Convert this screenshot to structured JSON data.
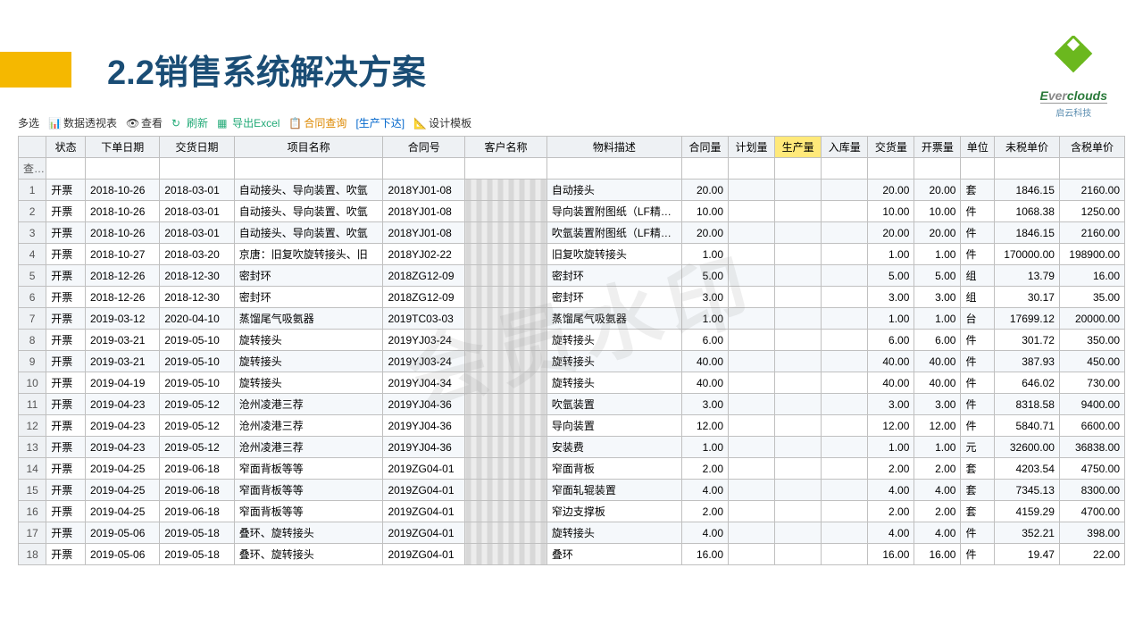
{
  "page": {
    "title": "2.2销售系统解决方案",
    "logo_name": "Everclouds",
    "logo_sub": "启云科技",
    "watermark": "会员水印"
  },
  "toolbar": {
    "multi": "多选",
    "pivot": "数据透视表",
    "view": "查看",
    "refresh": "刷新",
    "export": "导出Excel",
    "contract": "合同查询",
    "production": "[生产下达]",
    "design": "设计模板"
  },
  "columns": [
    "状态",
    "下单日期",
    "交货日期",
    "项目名称",
    "合同号",
    "客户名称",
    "物料描述",
    "合同量",
    "计划量",
    "生产量",
    "入库量",
    "交货量",
    "开票量",
    "单位",
    "未税单价",
    "含税单价"
  ],
  "query_label": "查询",
  "rows": [
    {
      "n": 1,
      "s": "开票",
      "d1": "2018-10-26",
      "d2": "2018-03-01",
      "proj": "自动接头、导向装置、吹氩",
      "cn": "2018YJ01-08",
      "desc": "自动接头",
      "q": "20.00",
      "dq": "20.00",
      "iq": "20.00",
      "u": "套",
      "p1": "1846.15",
      "p2": "2160.00"
    },
    {
      "n": 2,
      "s": "开票",
      "d1": "2018-10-26",
      "d2": "2018-03-01",
      "proj": "自动接头、导向装置、吹氩",
      "cn": "2018YJ01-08",
      "desc": "导向装置附图纸（LF精炼炉、",
      "q": "10.00",
      "dq": "10.00",
      "iq": "10.00",
      "u": "件",
      "p1": "1068.38",
      "p2": "1250.00"
    },
    {
      "n": 3,
      "s": "开票",
      "d1": "2018-10-26",
      "d2": "2018-03-01",
      "proj": "自动接头、导向装置、吹氩",
      "cn": "2018YJ01-08",
      "desc": "吹氩装置附图纸（LF精炼炉、",
      "q": "20.00",
      "dq": "20.00",
      "iq": "20.00",
      "u": "件",
      "p1": "1846.15",
      "p2": "2160.00"
    },
    {
      "n": 4,
      "s": "开票",
      "d1": "2018-10-27",
      "d2": "2018-03-20",
      "proj": "京唐：旧复吹旋转接头、旧",
      "cn": "2018YJ02-22",
      "desc": "旧复吹旋转接头",
      "q": "1.00",
      "dq": "1.00",
      "iq": "1.00",
      "u": "件",
      "p1": "170000.00",
      "p2": "198900.00"
    },
    {
      "n": 5,
      "s": "开票",
      "d1": "2018-12-26",
      "d2": "2018-12-30",
      "proj": "密封环",
      "cn": "2018ZG12-09",
      "desc": "密封环",
      "q": "5.00",
      "dq": "5.00",
      "iq": "5.00",
      "u": "组",
      "p1": "13.79",
      "p2": "16.00"
    },
    {
      "n": 6,
      "s": "开票",
      "d1": "2018-12-26",
      "d2": "2018-12-30",
      "proj": "密封环",
      "cn": "2018ZG12-09",
      "desc": "密封环",
      "q": "3.00",
      "dq": "3.00",
      "iq": "3.00",
      "u": "组",
      "p1": "30.17",
      "p2": "35.00"
    },
    {
      "n": 7,
      "s": "开票",
      "d1": "2019-03-12",
      "d2": "2020-04-10",
      "proj": "蒸馏尾气吸氨器",
      "cn": "2019TC03-03",
      "desc": "蒸馏尾气吸氨器",
      "q": "1.00",
      "dq": "1.00",
      "iq": "1.00",
      "u": "台",
      "p1": "17699.12",
      "p2": "20000.00"
    },
    {
      "n": 8,
      "s": "开票",
      "d1": "2019-03-21",
      "d2": "2019-05-10",
      "proj": "旋转接头",
      "cn": "2019YJ03-24",
      "desc": "旋转接头",
      "q": "6.00",
      "dq": "6.00",
      "iq": "6.00",
      "u": "件",
      "p1": "301.72",
      "p2": "350.00"
    },
    {
      "n": 9,
      "s": "开票",
      "d1": "2019-03-21",
      "d2": "2019-05-10",
      "proj": "旋转接头",
      "cn": "2019YJ03-24",
      "desc": "旋转接头",
      "q": "40.00",
      "dq": "40.00",
      "iq": "40.00",
      "u": "件",
      "p1": "387.93",
      "p2": "450.00"
    },
    {
      "n": 10,
      "s": "开票",
      "d1": "2019-04-19",
      "d2": "2019-05-10",
      "proj": "旋转接头",
      "cn": "2019YJ04-34",
      "desc": "旋转接头",
      "q": "40.00",
      "dq": "40.00",
      "iq": "40.00",
      "u": "件",
      "p1": "646.02",
      "p2": "730.00"
    },
    {
      "n": 11,
      "s": "开票",
      "d1": "2019-04-23",
      "d2": "2019-05-12",
      "proj": "沧州凌港三荐",
      "cn": "2019YJ04-36",
      "desc": "吹氩装置",
      "q": "3.00",
      "dq": "3.00",
      "iq": "3.00",
      "u": "件",
      "p1": "8318.58",
      "p2": "9400.00"
    },
    {
      "n": 12,
      "s": "开票",
      "d1": "2019-04-23",
      "d2": "2019-05-12",
      "proj": "沧州凌港三荐",
      "cn": "2019YJ04-36",
      "desc": "导向装置",
      "q": "12.00",
      "dq": "12.00",
      "iq": "12.00",
      "u": "件",
      "p1": "5840.71",
      "p2": "6600.00"
    },
    {
      "n": 13,
      "s": "开票",
      "d1": "2019-04-23",
      "d2": "2019-05-12",
      "proj": "沧州凌港三荐",
      "cn": "2019YJ04-36",
      "desc": "安装费",
      "q": "1.00",
      "dq": "1.00",
      "iq": "1.00",
      "u": "元",
      "p1": "32600.00",
      "p2": "36838.00"
    },
    {
      "n": 14,
      "s": "开票",
      "d1": "2019-04-25",
      "d2": "2019-06-18",
      "proj": "窄面背板等等",
      "cn": "2019ZG04-01",
      "desc": "窄面背板",
      "q": "2.00",
      "dq": "2.00",
      "iq": "2.00",
      "u": "套",
      "p1": "4203.54",
      "p2": "4750.00"
    },
    {
      "n": 15,
      "s": "开票",
      "d1": "2019-04-25",
      "d2": "2019-06-18",
      "proj": "窄面背板等等",
      "cn": "2019ZG04-01",
      "desc": "窄面轧辊装置",
      "q": "4.00",
      "dq": "4.00",
      "iq": "4.00",
      "u": "套",
      "p1": "7345.13",
      "p2": "8300.00"
    },
    {
      "n": 16,
      "s": "开票",
      "d1": "2019-04-25",
      "d2": "2019-06-18",
      "proj": "窄面背板等等",
      "cn": "2019ZG04-01",
      "desc": "窄边支撑板",
      "q": "2.00",
      "dq": "2.00",
      "iq": "2.00",
      "u": "套",
      "p1": "4159.29",
      "p2": "4700.00"
    },
    {
      "n": 17,
      "s": "开票",
      "d1": "2019-05-06",
      "d2": "2019-05-18",
      "proj": "叠环、旋转接头",
      "cn": "2019ZG04-01",
      "desc": "旋转接头",
      "q": "4.00",
      "dq": "4.00",
      "iq": "4.00",
      "u": "件",
      "p1": "352.21",
      "p2": "398.00"
    },
    {
      "n": 18,
      "s": "开票",
      "d1": "2019-05-06",
      "d2": "2019-05-18",
      "proj": "叠环、旋转接头",
      "cn": "2019ZG04-01",
      "desc": "叠环",
      "q": "16.00",
      "dq": "16.00",
      "iq": "16.00",
      "u": "件",
      "p1": "19.47",
      "p2": "22.00"
    }
  ]
}
